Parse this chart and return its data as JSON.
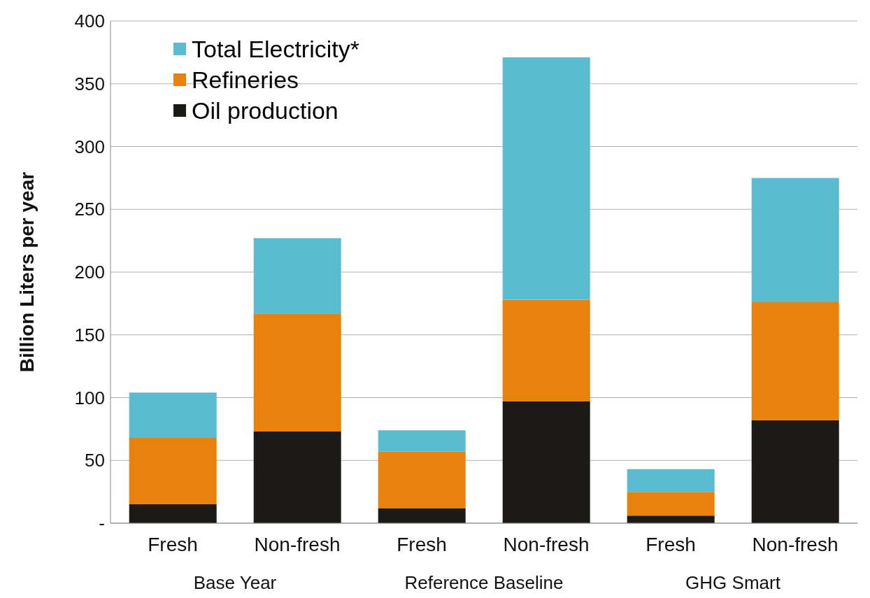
{
  "chart_data": {
    "type": "bar",
    "stacked": true,
    "ylabel": "Billion Liters per year",
    "categories": [
      "Fresh",
      "Non-fresh",
      "Fresh",
      "Non-fresh",
      "Fresh",
      "Non-fresh"
    ],
    "annotations": [
      "Base Year",
      "Reference Baseline",
      "GHG Smart"
    ],
    "series": [
      {
        "name": "Oil production",
        "color": "#1c1a16",
        "values": [
          15,
          73,
          12,
          97,
          6,
          82
        ]
      },
      {
        "name": "Refineries",
        "color": "#e8820c",
        "values": [
          53,
          94,
          45,
          81,
          19,
          94
        ]
      },
      {
        "name": "Total Electricity*",
        "color": "#5bbcd1",
        "values": [
          36,
          60,
          17,
          193,
          18,
          99
        ]
      }
    ],
    "ylim": [
      0,
      400
    ],
    "yticks": [
      {
        "value": 0,
        "label": "-"
      },
      50,
      100,
      150,
      200,
      250,
      300,
      350,
      400
    ],
    "grid": "y",
    "legend": "top left"
  }
}
